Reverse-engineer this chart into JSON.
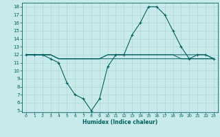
{
  "xlabel": "Humidex (Indice chaleur)",
  "ylabel": "",
  "background_color": "#c8eaea",
  "line_color": "#006060",
  "grid_color": "#a8d0d0",
  "xlim": [
    -0.5,
    23.5
  ],
  "ylim": [
    4.8,
    18.5
  ],
  "yticks": [
    5,
    6,
    7,
    8,
    9,
    10,
    11,
    12,
    13,
    14,
    15,
    16,
    17,
    18
  ],
  "xticks": [
    0,
    1,
    2,
    3,
    4,
    5,
    6,
    7,
    8,
    9,
    10,
    11,
    12,
    13,
    14,
    15,
    16,
    17,
    18,
    19,
    20,
    21,
    22,
    23
  ],
  "lines": [
    {
      "x": [
        0,
        1,
        2,
        3,
        4,
        5,
        6,
        7,
        8,
        9,
        10,
        11,
        12,
        13,
        14,
        15,
        16,
        17,
        18,
        19,
        20,
        21,
        22,
        23
      ],
      "y": [
        12,
        12,
        12,
        11.5,
        11,
        8.5,
        7,
        6.5,
        5,
        6.5,
        10.5,
        12,
        12,
        14.5,
        16,
        18,
        18,
        17,
        15,
        13,
        11.5,
        12,
        12,
        11.5
      ],
      "marker": "+"
    },
    {
      "x": [
        0,
        1,
        2,
        3,
        4,
        5,
        6,
        7,
        8,
        9,
        10,
        11,
        12,
        13,
        14,
        15,
        16,
        17,
        18,
        19,
        20,
        21,
        22,
        23
      ],
      "y": [
        12,
        12,
        12,
        12,
        11.5,
        11.5,
        11.5,
        11.5,
        11.5,
        11.5,
        11.5,
        11.5,
        11.5,
        11.5,
        11.5,
        11.5,
        11.5,
        11.5,
        11.5,
        11.5,
        11.5,
        11.5,
        11.5,
        11.5
      ],
      "marker": null
    },
    {
      "x": [
        0,
        1,
        2,
        3,
        4,
        5,
        6,
        7,
        8,
        9,
        10,
        11,
        12,
        13,
        14,
        15,
        16,
        17,
        18,
        19,
        20,
        21,
        22,
        23
      ],
      "y": [
        12,
        12,
        12,
        12,
        11.5,
        11.5,
        11.5,
        11.5,
        11.5,
        11.5,
        12,
        12,
        12,
        12,
        12,
        12,
        12,
        12,
        12,
        12,
        12,
        12,
        12,
        11.5
      ],
      "marker": null
    },
    {
      "x": [
        0,
        1,
        2,
        3,
        4,
        5,
        6,
        7,
        8,
        9,
        10,
        11,
        12,
        13,
        14,
        15,
        16,
        17,
        18,
        19,
        20,
        21,
        22,
        23
      ],
      "y": [
        12,
        12,
        12,
        12,
        11.5,
        11.5,
        11.5,
        11.5,
        11.5,
        11.5,
        12,
        12,
        12,
        12,
        12,
        12,
        12,
        12,
        12,
        11.5,
        11.5,
        11.5,
        11.5,
        11.5
      ],
      "marker": null
    }
  ]
}
